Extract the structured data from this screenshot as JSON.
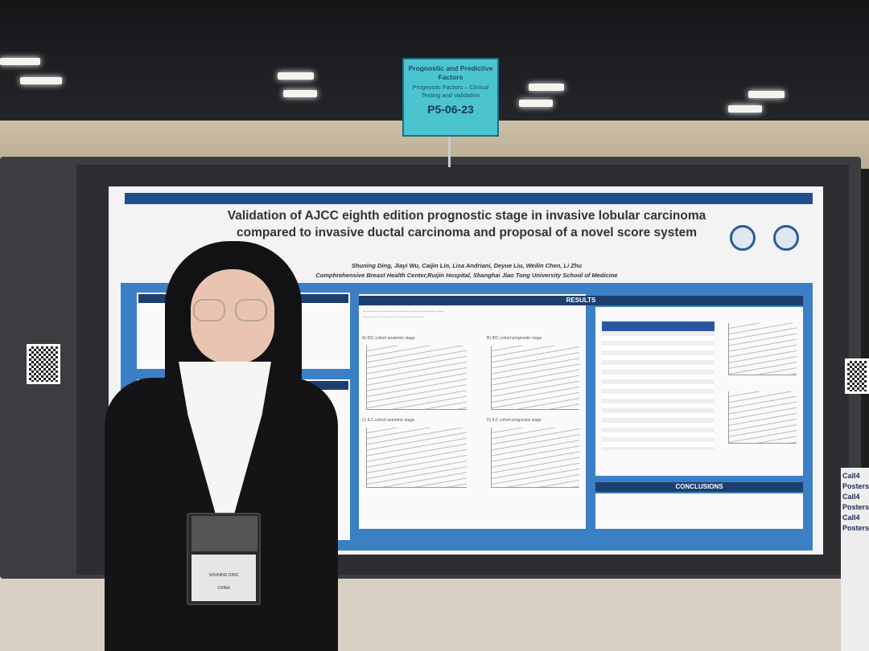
{
  "sign": {
    "category": "Prognostic and Predictive Factors",
    "subcategory": "Prognostic Factors – Clinical Testing and Validation",
    "poster_number": "P5-06-23"
  },
  "poster": {
    "title": "Validation of AJCC eighth edition prognostic stage in invasive lobular carcinoma compared to invasive ductal carcinoma and proposal of a novel score system",
    "authors": "Shuning Ding, Jiayi Wu, Caijin Lin, Lisa Andriani, Deyue Liu, Weilin Chen, Li Zhu",
    "affiliation": "Comphrehensive Breast Health Center,Ruijin Hospital, Shanghai Jiao Tong University School of Medicine",
    "results_header": "RESULTS",
    "conclusions_header": "CONCLUSIONS",
    "panels": [
      "A) IDC cohort anatomic stage",
      "B) IDC cohort prognostic stage",
      "C) ILC cohort anatomic stage",
      "D) ILC cohort prognostic stage"
    ]
  },
  "badge": {
    "name": "SHUNING DING",
    "country": "CHINA"
  },
  "banner": {
    "text": "Call4 Posters Call4 Posters Call4 Posters"
  },
  "colors": {
    "sign": "#4cc4cf",
    "poster_blue": "#3b7fc4",
    "header_navy": "#1d3f6e"
  }
}
